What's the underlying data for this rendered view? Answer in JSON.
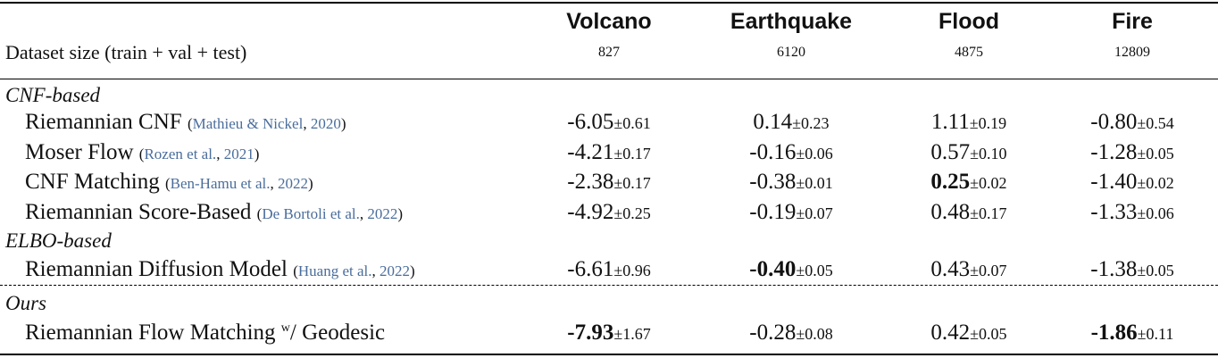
{
  "header": {
    "row_label": "Dataset size (train + val + test)",
    "columns": [
      {
        "name": "Volcano",
        "size": "827"
      },
      {
        "name": "Earthquake",
        "size": "6120"
      },
      {
        "name": "Flood",
        "size": "4875"
      },
      {
        "name": "Fire",
        "size": "12809"
      }
    ]
  },
  "sections": [
    {
      "title": "CNF-based"
    },
    {
      "title": "ELBO-based"
    },
    {
      "title": "Ours"
    }
  ],
  "rows": [
    {
      "method": "Riemannian CNF",
      "cite_authors": "Mathieu & Nickel",
      "cite_year": "2020",
      "cells": [
        {
          "val": "-6.05",
          "std": "±0.61",
          "bold": false
        },
        {
          "val": "0.14",
          "std": "±0.23",
          "bold": false
        },
        {
          "val": "1.11",
          "std": "±0.19",
          "bold": false
        },
        {
          "val": "-0.80",
          "std": "±0.54",
          "bold": false
        }
      ]
    },
    {
      "method": "Moser Flow",
      "cite_authors": "Rozen et al.",
      "cite_year": "2021",
      "cells": [
        {
          "val": "-4.21",
          "std": "±0.17",
          "bold": false
        },
        {
          "val": "-0.16",
          "std": "±0.06",
          "bold": false
        },
        {
          "val": "0.57",
          "std": "±0.10",
          "bold": false
        },
        {
          "val": "-1.28",
          "std": "±0.05",
          "bold": false
        }
      ]
    },
    {
      "method": "CNF Matching",
      "cite_authors": "Ben-Hamu et al.",
      "cite_year": "2022",
      "cells": [
        {
          "val": "-2.38",
          "std": "±0.17",
          "bold": false
        },
        {
          "val": "-0.38",
          "std": "±0.01",
          "bold": false
        },
        {
          "val": "0.25",
          "std": "±0.02",
          "bold": true
        },
        {
          "val": "-1.40",
          "std": "±0.02",
          "bold": false
        }
      ]
    },
    {
      "method": "Riemannian Score-Based",
      "cite_authors": "De Bortoli et al.",
      "cite_year": "2022",
      "cells": [
        {
          "val": "-4.92",
          "std": "±0.25",
          "bold": false
        },
        {
          "val": "-0.19",
          "std": "±0.07",
          "bold": false
        },
        {
          "val": "0.48",
          "std": "±0.17",
          "bold": false
        },
        {
          "val": "-1.33",
          "std": "±0.06",
          "bold": false
        }
      ]
    },
    {
      "method": "Riemannian Diffusion Model",
      "cite_authors": "Huang et al.",
      "cite_year": "2022",
      "cells": [
        {
          "val": "-6.61",
          "std": "±0.96",
          "bold": false
        },
        {
          "val": "-0.40",
          "std": "±0.05",
          "bold": true
        },
        {
          "val": "0.43",
          "std": "±0.07",
          "bold": false
        },
        {
          "val": "-1.38",
          "std": "±0.05",
          "bold": false
        }
      ]
    },
    {
      "method": "Riemannian Flow Matching",
      "method_sup": "w",
      "method_suffix": "/ Geodesic",
      "cells": [
        {
          "val": "-7.93",
          "std": "±1.67",
          "bold": true
        },
        {
          "val": "-0.28",
          "std": "±0.08",
          "bold": false
        },
        {
          "val": "0.42",
          "std": "±0.05",
          "bold": false
        },
        {
          "val": "-1.86",
          "std": "±0.11",
          "bold": true
        }
      ]
    }
  ]
}
